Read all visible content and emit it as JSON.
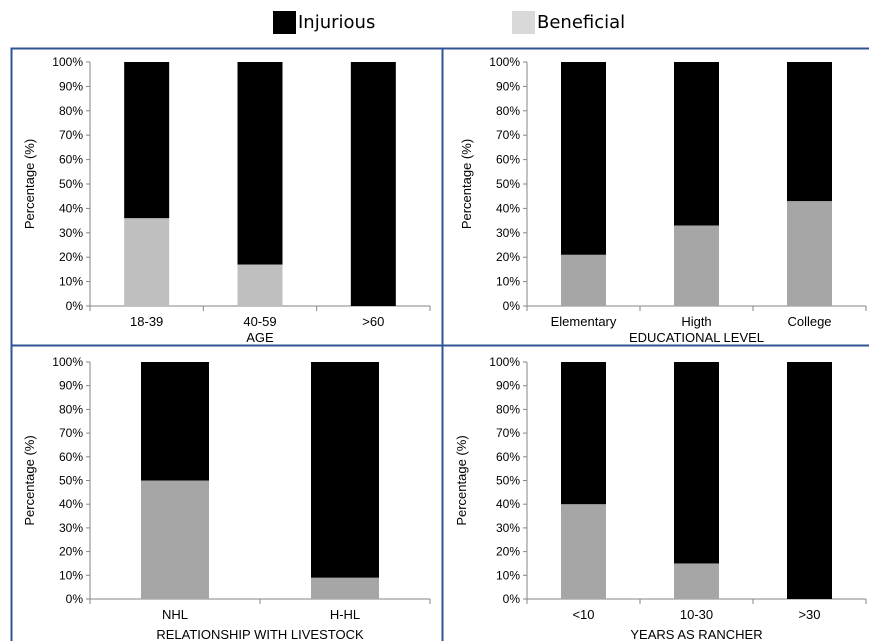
{
  "legend": {
    "items": [
      {
        "label": "Injurious",
        "color": "#000000"
      },
      {
        "label": "Beneficial",
        "color": "#d9d9d9"
      }
    ]
  },
  "chart_data": [
    {
      "type": "bar",
      "stacked": true,
      "categories": [
        "18-39",
        "40-59",
        ">60"
      ],
      "series": [
        {
          "name": "Beneficial",
          "values": [
            36,
            17,
            0
          ],
          "color": "#bfbfbf"
        },
        {
          "name": "Injurious",
          "values": [
            64,
            83,
            100
          ],
          "color": "#000000"
        }
      ],
      "xlabel": "AGE",
      "ylabel": "Percentage (%)",
      "ylim": [
        0,
        100
      ],
      "yticks": [
        "0%",
        "10%",
        "20%",
        "30%",
        "40%",
        "50%",
        "60%",
        "70%",
        "80%",
        "90%",
        "100%"
      ],
      "grid": false
    },
    {
      "type": "bar",
      "stacked": true,
      "categories": [
        "Elementary",
        "Higth",
        "College"
      ],
      "series": [
        {
          "name": "Beneficial",
          "values": [
            21,
            33,
            43
          ],
          "color": "#a6a6a6"
        },
        {
          "name": "Injurious",
          "values": [
            79,
            67,
            57
          ],
          "color": "#000000"
        }
      ],
      "xlabel": "EDUCATIONAL LEVEL",
      "ylabel": "Percentage (%)",
      "ylim": [
        0,
        100
      ],
      "yticks": [
        "0%",
        "10%",
        "20%",
        "30%",
        "40%",
        "50%",
        "60%",
        "70%",
        "80%",
        "90%",
        "100%"
      ],
      "grid": false
    },
    {
      "type": "bar",
      "stacked": true,
      "categories": [
        "NHL",
        "H-HL"
      ],
      "series": [
        {
          "name": "Beneficial",
          "values": [
            50,
            9
          ],
          "color": "#a6a6a6"
        },
        {
          "name": "Injurious",
          "values": [
            50,
            91
          ],
          "color": "#000000"
        }
      ],
      "xlabel": "RELATIONSHIP WITH LIVESTOCK",
      "ylabel": "Percentage (%)",
      "ylim": [
        0,
        100
      ],
      "yticks": [
        "0%",
        "10%",
        "20%",
        "30%",
        "40%",
        "50%",
        "60%",
        "70%",
        "80%",
        "90%",
        "100%"
      ],
      "grid": false
    },
    {
      "type": "bar",
      "stacked": true,
      "categories": [
        "<10",
        "10-30",
        ">30"
      ],
      "series": [
        {
          "name": "Beneficial",
          "values": [
            40,
            15,
            0
          ],
          "color": "#a6a6a6"
        },
        {
          "name": "Injurious",
          "values": [
            60,
            85,
            100
          ],
          "color": "#000000"
        }
      ],
      "xlabel": "YEARS AS RANCHER",
      "ylabel": "Percentage (%)",
      "ylim": [
        0,
        100
      ],
      "yticks": [
        "0%",
        "10%",
        "20%",
        "30%",
        "40%",
        "50%",
        "60%",
        "70%",
        "80%",
        "90%",
        "100%"
      ],
      "grid": false
    }
  ]
}
